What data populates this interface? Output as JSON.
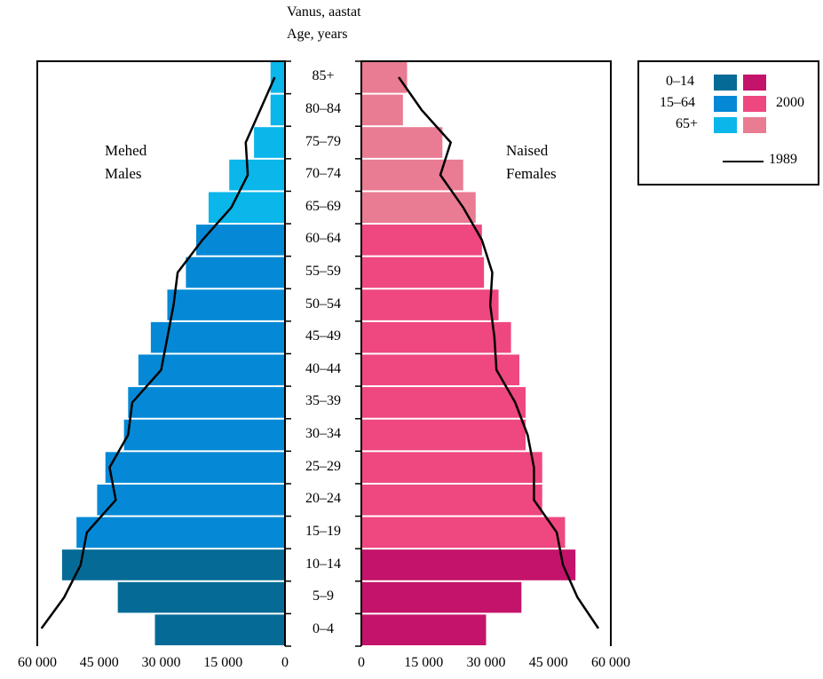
{
  "chart_data": {
    "type": "bar",
    "orientation": "horizontal",
    "subtype": "population-pyramid",
    "axis_title": [
      "Vanus, aastat",
      "Age, years"
    ],
    "categories": [
      "0–4",
      "5–9",
      "10–14",
      "15–19",
      "20–24",
      "25–29",
      "30–34",
      "35–39",
      "40–44",
      "45–49",
      "50–54",
      "55–59",
      "60–64",
      "65–69",
      "70–74",
      "75–79",
      "80–84",
      "85+"
    ],
    "males_label": [
      "Mehed",
      "Males"
    ],
    "females_label": [
      "Naised",
      "Females"
    ],
    "xlim": [
      0,
      60000
    ],
    "male_ticks": [
      "60 000",
      "45 000",
      "30 000",
      "15 000",
      "0"
    ],
    "female_ticks": [
      "0",
      "15 000",
      "30 000",
      "45 000",
      "60 000"
    ],
    "tick_values": [
      0,
      15000,
      30000,
      45000,
      60000
    ],
    "series": [
      {
        "year": "2000",
        "sex": "males",
        "values": [
          31500,
          40500,
          54000,
          50500,
          45500,
          43500,
          39000,
          38000,
          35500,
          32500,
          28500,
          24000,
          21500,
          18500,
          13500,
          7500,
          3500,
          3500
        ]
      },
      {
        "year": "2000",
        "sex": "females",
        "values": [
          30000,
          38500,
          51500,
          49000,
          43500,
          43500,
          39500,
          39500,
          38000,
          36000,
          33000,
          29500,
          29000,
          27500,
          24500,
          19500,
          10000,
          11000
        ]
      },
      {
        "year": "1989",
        "sex": "males",
        "style": "line",
        "values": [
          59000,
          53500,
          49500,
          48000,
          41000,
          42500,
          38000,
          37000,
          30000,
          28500,
          27000,
          26000,
          20000,
          13000,
          9000,
          9500,
          6000,
          2500
        ]
      },
      {
        "year": "1989",
        "sex": "females",
        "style": "line",
        "values": [
          57000,
          52000,
          48500,
          47000,
          41500,
          41500,
          40000,
          37000,
          32500,
          32000,
          31000,
          31500,
          29000,
          24500,
          19000,
          21500,
          14500,
          9000
        ]
      }
    ],
    "legend": {
      "position": "top-right",
      "groups": [
        "0–14",
        "15–64",
        "65+"
      ],
      "bar_year": "2000",
      "line_year": "1989"
    },
    "colors": {
      "male_0_14": "#056b96",
      "male_15_64": "#0589d6",
      "male_65_plus": "#0ab6ea",
      "female_0_14": "#c4136a",
      "female_15_64": "#ef4780",
      "female_65_plus": "#e97b93",
      "line": "#000000"
    }
  }
}
